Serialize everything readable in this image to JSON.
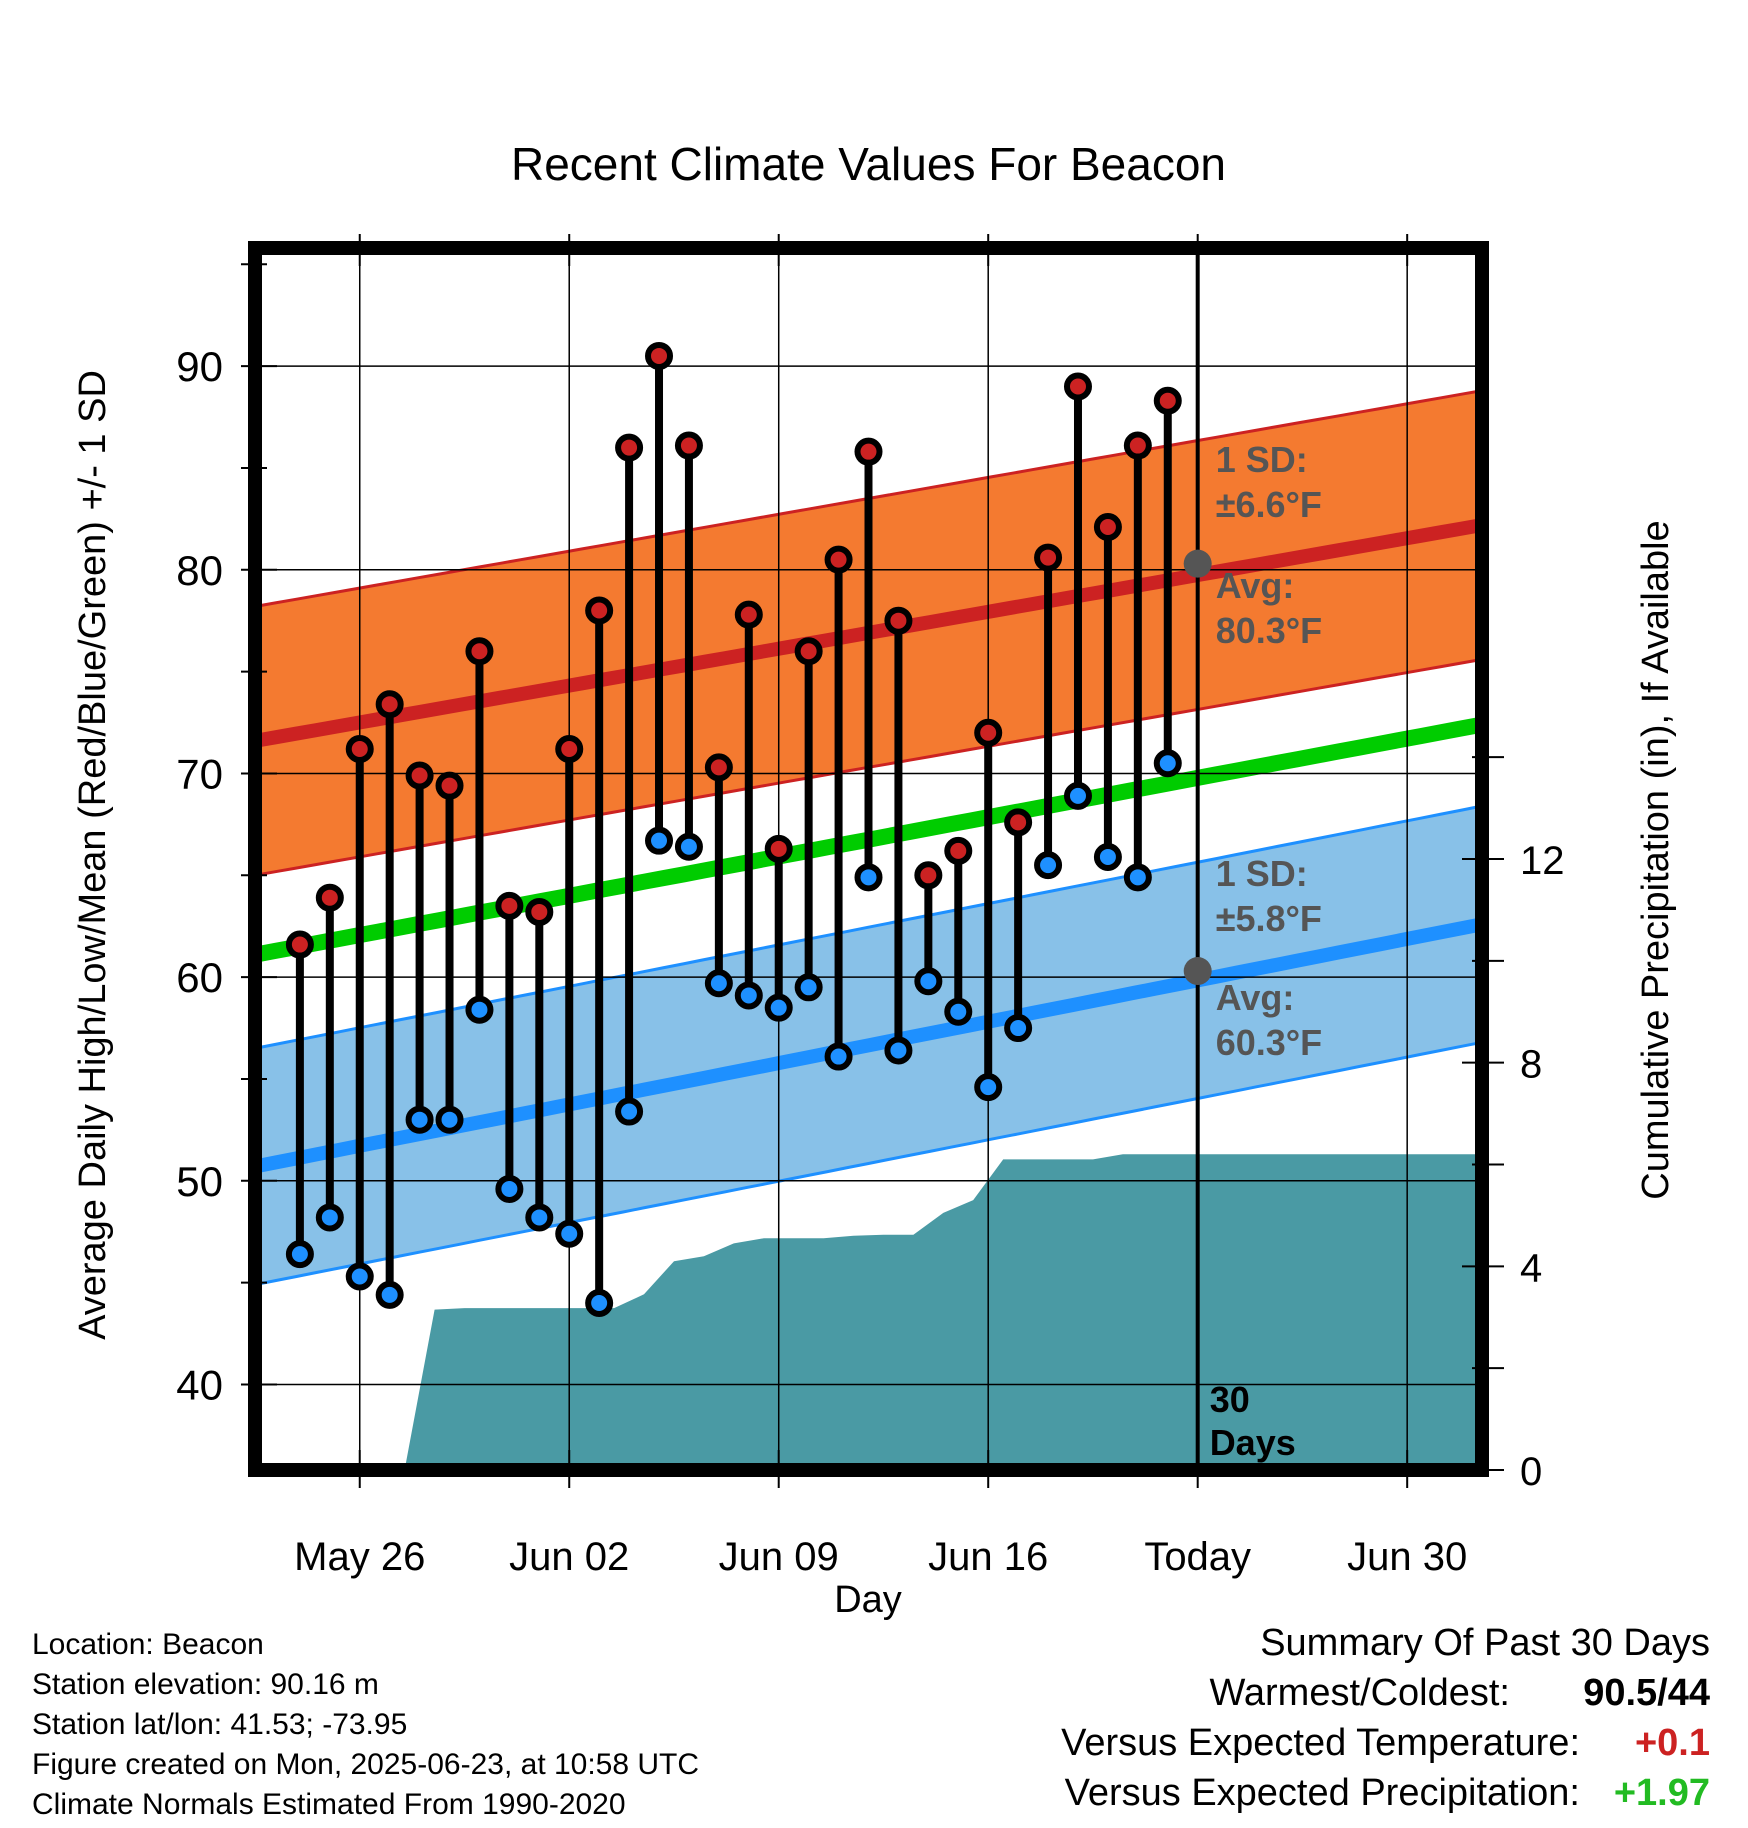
{
  "chart_data": {
    "type": "line",
    "title": "Recent Climate Values For Beacon",
    "xlabel": "Day",
    "ylabel": "Average Daily High/Low/Mean (Red/Blue/Green) +/- 1 SD",
    "y2label": "Cumulative Precipitation (in), If Available",
    "ylim": [
      35.8,
      95.8
    ],
    "y2lim": [
      0,
      24
    ],
    "yticks": [
      40,
      50,
      60,
      70,
      80,
      90
    ],
    "y2ticks": [
      0,
      4,
      8,
      12
    ],
    "x_day_range": [
      -3.5,
      37.5
    ],
    "xticks": [
      {
        "day": 0,
        "label": "May 26"
      },
      {
        "day": 7,
        "label": "Jun 02"
      },
      {
        "day": 14,
        "label": "Jun 09"
      },
      {
        "day": 21,
        "label": "Jun 16"
      },
      {
        "day": 28,
        "label": "Today"
      },
      {
        "day": 35,
        "label": "Jun 30"
      }
    ],
    "today_day": 28,
    "grid": true,
    "days": [
      -2,
      -1,
      0,
      1,
      2,
      3,
      4,
      5,
      6,
      7,
      8,
      9,
      10,
      11,
      12,
      13,
      14,
      15,
      16,
      17,
      18,
      19,
      20,
      21,
      22,
      23,
      24,
      25,
      26,
      27
    ],
    "daily_high": [
      61.6,
      63.9,
      71.2,
      73.4,
      69.9,
      69.4,
      76.0,
      63.5,
      63.2,
      71.2,
      78.0,
      86.0,
      90.5,
      86.1,
      70.3,
      77.8,
      66.3,
      76.0,
      80.5,
      85.8,
      77.5,
      65.0,
      66.2,
      72.0,
      67.6,
      80.6,
      89.0,
      82.1,
      86.1,
      88.3
    ],
    "daily_low": [
      46.4,
      48.2,
      45.3,
      44.4,
      53.0,
      53.0,
      58.4,
      49.6,
      48.2,
      47.4,
      44.0,
      53.4,
      66.7,
      66.4,
      59.7,
      59.1,
      58.5,
      59.5,
      56.1,
      64.9,
      56.4,
      59.8,
      58.3,
      54.6,
      57.5,
      65.5,
      68.9,
      65.9,
      64.9,
      70.5
    ],
    "normal_high": {
      "days": [
        -3.5,
        37.5
      ],
      "values": [
        71.6,
        82.2
      ]
    },
    "normal_low": {
      "days": [
        -3.5,
        37.5
      ],
      "values": [
        50.7,
        62.6
      ]
    },
    "normal_mean": {
      "days": [
        -3.5,
        37.5
      ],
      "values": [
        61.1,
        72.4
      ]
    },
    "normal_high_sd": 6.6,
    "normal_low_sd": 5.8,
    "cumulative_precip_days": [
      1.5,
      2.5,
      3.5,
      4.5,
      5.5,
      6.5,
      7.5,
      8.5,
      9.5,
      10.5,
      11.5,
      12.5,
      13.5,
      14.5,
      15.5,
      16.5,
      17.5,
      18.5,
      19.5,
      20.5,
      21.5,
      22.5,
      23.5,
      24.5,
      25.5,
      26.5,
      27.5,
      37.5
    ],
    "cumulative_precip": [
      0.0,
      3.15,
      3.18,
      3.18,
      3.18,
      3.18,
      3.18,
      3.18,
      3.45,
      4.1,
      4.2,
      4.45,
      4.55,
      4.55,
      4.55,
      4.6,
      4.62,
      4.62,
      5.05,
      5.3,
      6.1,
      6.1,
      6.1,
      6.1,
      6.2,
      6.2,
      6.2,
      6.2
    ],
    "series": [
      {
        "name": "Daily High",
        "color": "#cc2222"
      },
      {
        "name": "Daily Low",
        "color": "#1e90ff"
      },
      {
        "name": "Mean",
        "color": "#00cc00"
      }
    ],
    "annotations": {
      "high_sd_label": "1 SD:",
      "high_sd_value": "±6.6°F",
      "high_avg_label": "Avg:",
      "high_avg_value": "80.3°F",
      "high_avg_point": 80.3,
      "low_sd_label": "1 SD:",
      "low_sd_value": "±5.8°F",
      "low_avg_label": "Avg:",
      "low_avg_value": "60.3°F",
      "low_avg_point": 60.3,
      "days_label_1": "30",
      "days_label_2": "Days"
    },
    "colors": {
      "high_band": "#f47a30",
      "high_line": "#cc2222",
      "low_band": "#88c1e8",
      "low_line": "#1e90ff",
      "mean_line": "#00cc00",
      "precip": "#4a9aa4",
      "annotation_text": "#555555"
    }
  },
  "info": {
    "location": "Location: Beacon",
    "elevation": "Station elevation: 90.16 m",
    "latlon": "Station lat/lon: 41.53; -73.95",
    "created": "Figure created on Mon, 2025-06-23, at 10:58 UTC",
    "normals": "Climate Normals Estimated From 1990-2020"
  },
  "summary": {
    "heading": "Summary Of Past 30 Days",
    "warmest_coldest_label": "Warmest/Coldest:",
    "warmest_coldest_value": "90.5/44",
    "temp_label": "Versus Expected Temperature:",
    "temp_value": "+0.1",
    "temp_color": "#cc2222",
    "precip_label": "Versus Expected Precipitation:",
    "precip_value": "+1.97",
    "precip_color": "#22bb22"
  }
}
